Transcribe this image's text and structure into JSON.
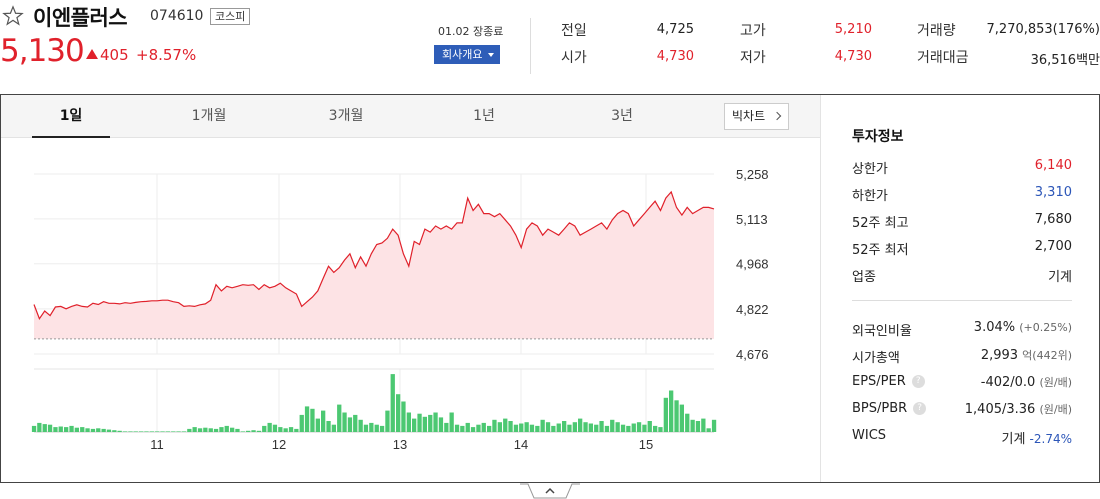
{
  "stock": {
    "name": "이엔플러스",
    "code": "074610",
    "market": "코스피",
    "price": "5,130",
    "change": "405",
    "change_pct": "+8.57%",
    "status": "01.02 장종료",
    "company_button": "회사개요"
  },
  "quotes": [
    {
      "label": "전일",
      "value": "4,725",
      "tone": "normal"
    },
    {
      "label": "시가",
      "value": "4,730",
      "tone": "up"
    },
    {
      "label": "고가",
      "value": "5,210",
      "tone": "up"
    },
    {
      "label": "저가",
      "value": "4,730",
      "tone": "up"
    },
    {
      "label": "거래량",
      "value": "7,270,853(176%)",
      "tone": "normal"
    },
    {
      "label": "거래대금",
      "value": "36,516백만",
      "tone": "normal"
    }
  ],
  "tabs": [
    "1일",
    "1개월",
    "3개월",
    "1년",
    "3년"
  ],
  "active_tab": "1일",
  "bigchart_button": "빅차트",
  "side": {
    "title": "투자정보",
    "items": [
      {
        "label": "상한가",
        "value": "6,140",
        "tone": "up"
      },
      {
        "label": "하한가",
        "value": "3,310",
        "tone": "down"
      },
      {
        "label": "52주 최고",
        "value": "7,680",
        "tone": "normal"
      },
      {
        "label": "52주 최저",
        "value": "2,700",
        "tone": "normal"
      },
      {
        "label": "업종",
        "value": "기계",
        "tone": "normal"
      }
    ],
    "foreign_ratio": {
      "label": "외국인비율",
      "value": "3.04%",
      "sub": "(+0.25%)"
    },
    "market_cap": {
      "label": "시가총액",
      "value": "2,993",
      "unit": "억",
      "sub": "(442위)"
    },
    "eps_per": {
      "label": "EPS/PER",
      "value": "-402/0.0",
      "sub": "(원/배)"
    },
    "bps_pbr": {
      "label": "BPS/PBR",
      "value": "1,405/3.36",
      "sub": "(원/배)"
    },
    "wics": {
      "label": "WICS",
      "value": "기계",
      "sub": "-2.74%"
    }
  },
  "colors": {
    "up": "#e0212b",
    "down": "#2c56b8",
    "volume": "#4cc872",
    "area": "#fde3e5"
  },
  "chart_data": {
    "type": "area",
    "x_labels": [
      "11",
      "12",
      "13",
      "14",
      "15"
    ],
    "y_ticks": [
      "5,258",
      "5,113",
      "4,968",
      "4,822",
      "4,676"
    ],
    "ylim": [
      4676,
      5258
    ],
    "reference_line": 4725,
    "price": [
      4836,
      4790,
      4815,
      4800,
      4828,
      4830,
      4822,
      4830,
      4835,
      4830,
      4828,
      4840,
      4836,
      4845,
      4840,
      4840,
      4838,
      4842,
      4840,
      4843,
      4845,
      4846,
      4848,
      4848,
      4850,
      4850,
      4845,
      4842,
      4830,
      4832,
      4830,
      4835,
      4838,
      4850,
      4900,
      4880,
      4895,
      4890,
      4895,
      4900,
      4898,
      4900,
      4885,
      4900,
      4890,
      4895,
      4905,
      4890,
      4880,
      4870,
      4830,
      4845,
      4860,
      4880,
      4920,
      4960,
      4940,
      4955,
      4980,
      5000,
      4955,
      4990,
      4960,
      5000,
      5030,
      5035,
      5050,
      5080,
      5060,
      5000,
      4960,
      5040,
      5030,
      5080,
      5070,
      5090,
      5080,
      5090,
      5080,
      5100,
      5100,
      5180,
      5140,
      5160,
      5130,
      5130,
      5120,
      5130,
      5110,
      5090,
      5060,
      5020,
      5080,
      5100,
      5090,
      5060,
      5080,
      5070,
      5060,
      5080,
      5100,
      5090,
      5060,
      5070,
      5080,
      5090,
      5100,
      5080,
      5110,
      5130,
      5140,
      5130,
      5090,
      5110,
      5130,
      5150,
      5170,
      5140,
      5180,
      5200,
      5150,
      5125,
      5150,
      5130,
      5140,
      5150,
      5150,
      5145
    ],
    "volume": [
      0.1,
      0.15,
      0.13,
      0.12,
      0.08,
      0.09,
      0.08,
      0.1,
      0.07,
      0.08,
      0.06,
      0.05,
      0.06,
      0.05,
      0.04,
      0.03,
      0.02,
      0.01,
      0.01,
      0.01,
      0.01,
      0.01,
      0.01,
      0.01,
      0.01,
      0.01,
      0.01,
      0.01,
      0.01,
      0.05,
      0.08,
      0.06,
      0.07,
      0.06,
      0.05,
      0.08,
      0.1,
      0.07,
      0.05,
      0.01,
      0.02,
      0.03,
      0.02,
      0.1,
      0.15,
      0.12,
      0.08,
      0.06,
      0.08,
      0.05,
      0.28,
      0.42,
      0.38,
      0.22,
      0.35,
      0.18,
      0.12,
      0.45,
      0.32,
      0.24,
      0.28,
      0.2,
      0.12,
      0.15,
      0.12,
      0.1,
      0.35,
      0.95,
      0.62,
      0.5,
      0.32,
      0.22,
      0.3,
      0.25,
      0.28,
      0.32,
      0.24,
      0.15,
      0.32,
      0.12,
      0.1,
      0.15,
      0.08,
      0.12,
      0.15,
      0.1,
      0.2,
      0.16,
      0.22,
      0.18,
      0.12,
      0.14,
      0.16,
      0.12,
      0.1,
      0.2,
      0.16,
      0.1,
      0.14,
      0.18,
      0.12,
      0.16,
      0.22,
      0.16,
      0.14,
      0.12,
      0.18,
      0.1,
      0.2,
      0.16,
      0.12,
      0.1,
      0.14,
      0.16,
      0.12,
      0.18,
      0.1,
      0.08,
      0.56,
      0.68,
      0.52,
      0.45,
      0.3,
      0.2,
      0.18,
      0.22,
      0.06,
      0.2
    ]
  }
}
